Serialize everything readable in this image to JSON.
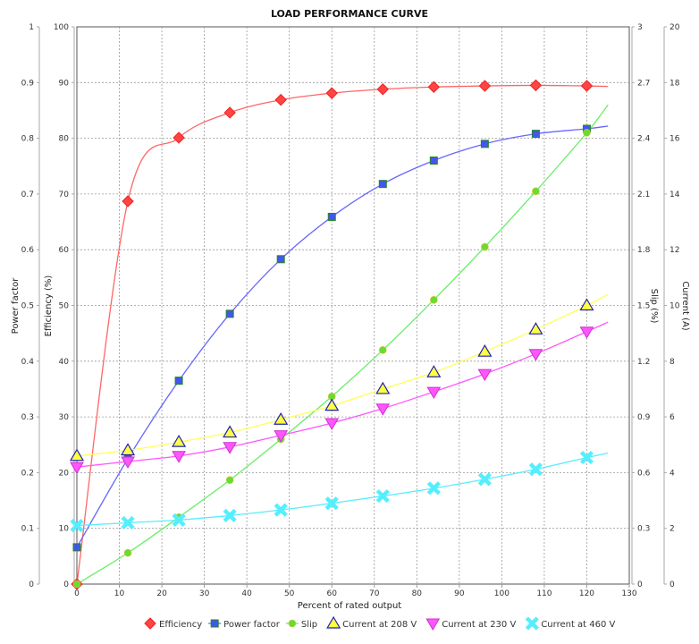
{
  "chart_data": {
    "type": "scatter",
    "title": "LOAD PERFORMANCE CURVE",
    "xlabel": "Percent of rated output",
    "xlim": [
      0,
      130
    ],
    "xticks": [
      0,
      10,
      20,
      30,
      40,
      50,
      60,
      70,
      80,
      90,
      100,
      110,
      120,
      130
    ],
    "axes": {
      "power_factor": {
        "label": "Power factor",
        "lim": [
          0,
          1
        ],
        "ticks": [
          "0",
          "0.1",
          "0.2",
          "0.3",
          "0.4",
          "0.5",
          "0.6",
          "0.7",
          "0.8",
          "0.9",
          "1"
        ]
      },
      "efficiency": {
        "label": "Efficiency (%)",
        "lim": [
          0,
          100
        ],
        "ticks": [
          "0",
          "10",
          "20",
          "30",
          "40",
          "50",
          "60",
          "70",
          "80",
          "90",
          "100"
        ]
      },
      "slip": {
        "label": "Slip (%)",
        "lim": [
          0,
          3
        ],
        "ticks": [
          "0",
          "0.3",
          "0.6",
          "0.9",
          "1.2",
          "1.5",
          "1.8",
          "2.1",
          "2.4",
          "2.7",
          "3"
        ]
      },
      "current": {
        "label": "Current (A)",
        "lim": [
          0,
          20
        ],
        "ticks": [
          "0",
          "2",
          "4",
          "6",
          "8",
          "10",
          "12",
          "14",
          "16",
          "18",
          "20"
        ]
      }
    },
    "grid": true,
    "legend_position": "bottom",
    "x": [
      0,
      12,
      24,
      36,
      48,
      60,
      72,
      84,
      96,
      108,
      120
    ],
    "series": [
      {
        "name": "Efficiency",
        "axis": "efficiency",
        "marker": "diamond",
        "color": "#ff4444",
        "line": "#ff6666",
        "values": [
          0,
          68.7,
          80.1,
          84.6,
          86.9,
          88.1,
          88.8,
          89.2,
          89.4,
          89.5,
          89.4
        ],
        "fit_end": 89.3
      },
      {
        "name": "Power factor",
        "axis": "power_factor",
        "marker": "square",
        "color": "#4455ee",
        "line": "#6666ff",
        "values": [
          0.066,
          0.225,
          0.365,
          0.485,
          0.583,
          0.659,
          0.718,
          0.76,
          0.79,
          0.808,
          0.817
        ],
        "fit_end": 0.822
      },
      {
        "name": "Slip",
        "axis": "slip",
        "marker": "circle",
        "color": "#66dd33",
        "line": "#66ee66",
        "values": [
          0,
          0.168,
          0.36,
          0.56,
          0.78,
          1.01,
          1.26,
          1.53,
          1.815,
          2.115,
          2.43
        ],
        "fit_end": 2.58
      },
      {
        "name": "Current at 208 V",
        "axis": "current",
        "marker": "triangle-up",
        "color": "#ffff44",
        "line": "#ffff55",
        "values": [
          4.6,
          4.8,
          5.1,
          5.44,
          5.9,
          6.4,
          7.0,
          7.6,
          8.34,
          9.14,
          10.0
        ],
        "fit_end": 10.4
      },
      {
        "name": "Current at 230 V",
        "axis": "current",
        "marker": "triangle-down",
        "color": "#ff55ff",
        "line": "#ff55ff",
        "values": [
          4.2,
          4.4,
          4.6,
          4.92,
          5.34,
          5.78,
          6.3,
          6.9,
          7.54,
          8.26,
          9.06
        ],
        "fit_end": 9.4
      },
      {
        "name": "Current at 460 V",
        "axis": "current",
        "marker": "x",
        "color": "#55eeff",
        "line": "#55eeff",
        "values": [
          2.1,
          2.2,
          2.3,
          2.46,
          2.66,
          2.9,
          3.16,
          3.44,
          3.76,
          4.12,
          4.54
        ],
        "fit_end": 4.7
      }
    ],
    "fit_x_end": 125
  }
}
